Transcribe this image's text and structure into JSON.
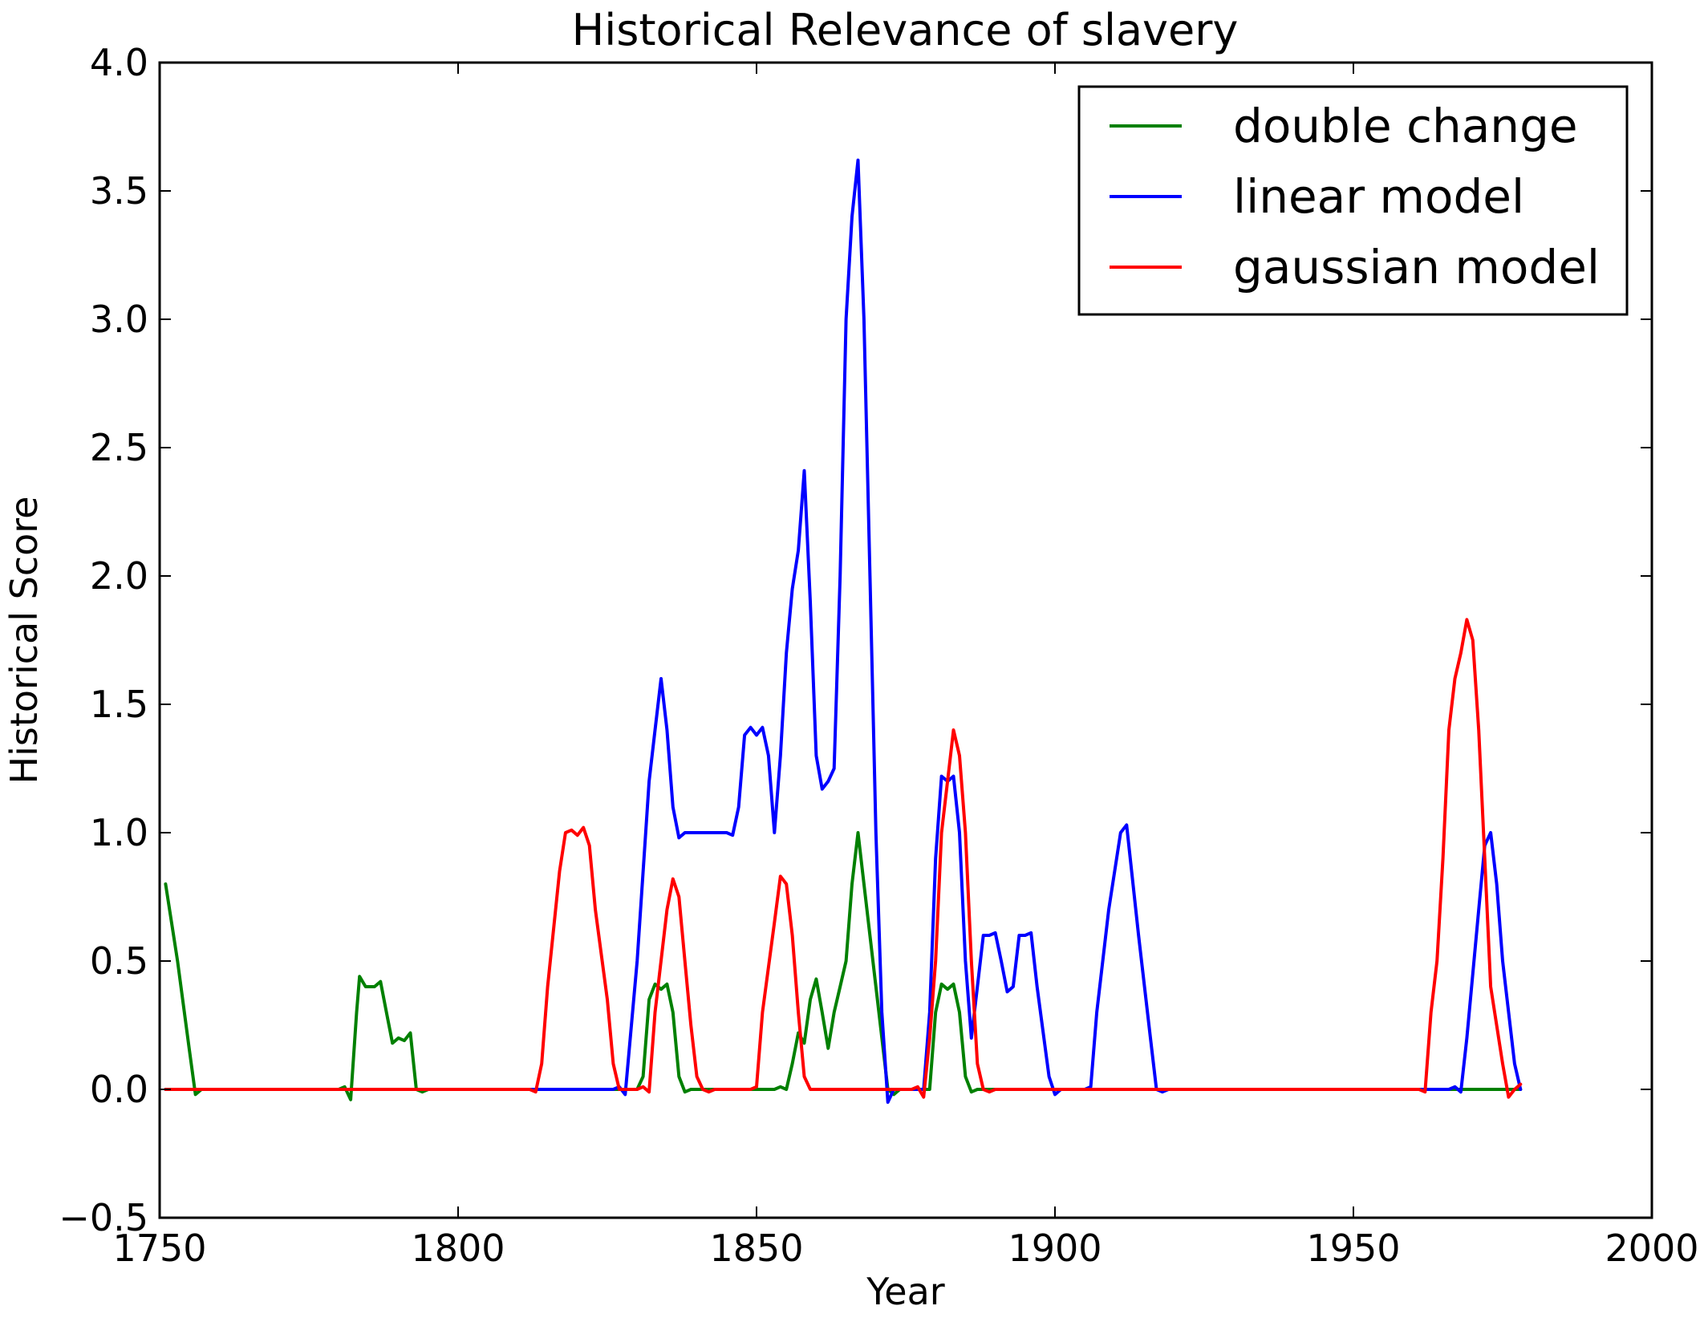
{
  "chart_data": {
    "type": "line",
    "title": "Historical Relevance of slavery",
    "xlabel": "Year",
    "ylabel": "Historical Score",
    "xlim": [
      1750,
      2000
    ],
    "ylim": [
      -0.5,
      4.0
    ],
    "x_ticks": [
      1750,
      1800,
      1850,
      1900,
      1950,
      2000
    ],
    "x_tick_labels": [
      "1750",
      "1800",
      "1850",
      "1900",
      "1950",
      "2000"
    ],
    "y_ticks": [
      -0.5,
      0.0,
      0.5,
      1.0,
      1.5,
      2.0,
      2.5,
      3.0,
      3.5,
      4.0
    ],
    "y_tick_labels": [
      "−0.5",
      "0.0",
      "0.5",
      "1.0",
      "1.5",
      "2.0",
      "2.5",
      "3.0",
      "3.5",
      "4.0"
    ],
    "grid": false,
    "legend_position": "top-right",
    "series": [
      {
        "name": "double change",
        "color": "#008000",
        "points": [
          [
            1751,
            0.8
          ],
          [
            1753,
            0.5
          ],
          [
            1755,
            0.15
          ],
          [
            1756,
            -0.02
          ],
          [
            1757,
            0.0
          ],
          [
            1780,
            0.0
          ],
          [
            1781,
            0.01
          ],
          [
            1782,
            -0.04
          ],
          [
            1783,
            0.3
          ],
          [
            1783.5,
            0.44
          ],
          [
            1784.5,
            0.4
          ],
          [
            1786,
            0.4
          ],
          [
            1787,
            0.42
          ],
          [
            1788,
            0.3
          ],
          [
            1789,
            0.18
          ],
          [
            1790,
            0.2
          ],
          [
            1791,
            0.19
          ],
          [
            1792,
            0.22
          ],
          [
            1793,
            0.0
          ],
          [
            1794,
            -0.01
          ],
          [
            1795,
            0.0
          ],
          [
            1830,
            0.0
          ],
          [
            1831,
            0.05
          ],
          [
            1832,
            0.35
          ],
          [
            1833,
            0.41
          ],
          [
            1834,
            0.39
          ],
          [
            1835,
            0.41
          ],
          [
            1836,
            0.3
          ],
          [
            1837,
            0.05
          ],
          [
            1838,
            -0.01
          ],
          [
            1839,
            0.0
          ],
          [
            1853,
            0.0
          ],
          [
            1854,
            0.01
          ],
          [
            1855,
            0.0
          ],
          [
            1856,
            0.1
          ],
          [
            1857,
            0.22
          ],
          [
            1858,
            0.18
          ],
          [
            1859,
            0.35
          ],
          [
            1860,
            0.43
          ],
          [
            1861,
            0.3
          ],
          [
            1862,
            0.16
          ],
          [
            1863,
            0.3
          ],
          [
            1864,
            0.4
          ],
          [
            1865,
            0.5
          ],
          [
            1866,
            0.8
          ],
          [
            1867,
            1.0
          ],
          [
            1868,
            0.8
          ],
          [
            1870,
            0.4
          ],
          [
            1872,
            0.0
          ],
          [
            1873,
            -0.02
          ],
          [
            1874,
            0.0
          ],
          [
            1879,
            0.0
          ],
          [
            1880,
            0.3
          ],
          [
            1881,
            0.41
          ],
          [
            1882,
            0.39
          ],
          [
            1883,
            0.41
          ],
          [
            1884,
            0.3
          ],
          [
            1885,
            0.05
          ],
          [
            1886,
            -0.01
          ],
          [
            1887,
            0.0
          ],
          [
            1978,
            0.0
          ]
        ]
      },
      {
        "name": "linear model",
        "color": "#0000ff",
        "points": [
          [
            1751,
            0.0
          ],
          [
            1826,
            0.0
          ],
          [
            1827,
            0.01
          ],
          [
            1828,
            -0.02
          ],
          [
            1830,
            0.5
          ],
          [
            1832,
            1.2
          ],
          [
            1833,
            1.4
          ],
          [
            1834,
            1.6
          ],
          [
            1835,
            1.4
          ],
          [
            1836,
            1.1
          ],
          [
            1837,
            0.98
          ],
          [
            1838,
            1.0
          ],
          [
            1845,
            1.0
          ],
          [
            1846,
            0.99
          ],
          [
            1847,
            1.1
          ],
          [
            1848,
            1.38
          ],
          [
            1849,
            1.41
          ],
          [
            1850,
            1.38
          ],
          [
            1851,
            1.41
          ],
          [
            1852,
            1.3
          ],
          [
            1853,
            1.0
          ],
          [
            1854,
            1.3
          ],
          [
            1855,
            1.7
          ],
          [
            1856,
            1.95
          ],
          [
            1857,
            2.1
          ],
          [
            1858,
            2.41
          ],
          [
            1859,
            1.9
          ],
          [
            1860,
            1.3
          ],
          [
            1861,
            1.17
          ],
          [
            1862,
            1.2
          ],
          [
            1863,
            1.25
          ],
          [
            1864,
            2.0
          ],
          [
            1865,
            3.0
          ],
          [
            1866,
            3.4
          ],
          [
            1867,
            3.62
          ],
          [
            1868,
            3.0
          ],
          [
            1869,
            2.0
          ],
          [
            1870,
            1.0
          ],
          [
            1871,
            0.3
          ],
          [
            1872,
            -0.05
          ],
          [
            1873,
            0.0
          ],
          [
            1878,
            0.0
          ],
          [
            1879,
            0.3
          ],
          [
            1880,
            0.9
          ],
          [
            1881,
            1.22
          ],
          [
            1882,
            1.2
          ],
          [
            1883,
            1.22
          ],
          [
            1884,
            1.0
          ],
          [
            1885,
            0.5
          ],
          [
            1886,
            0.2
          ],
          [
            1887,
            0.4
          ],
          [
            1888,
            0.6
          ],
          [
            1889,
            0.6
          ],
          [
            1890,
            0.61
          ],
          [
            1891,
            0.5
          ],
          [
            1892,
            0.38
          ],
          [
            1893,
            0.4
          ],
          [
            1894,
            0.6
          ],
          [
            1895,
            0.6
          ],
          [
            1896,
            0.61
          ],
          [
            1897,
            0.4
          ],
          [
            1899,
            0.05
          ],
          [
            1900,
            -0.02
          ],
          [
            1901,
            0.0
          ],
          [
            1905,
            0.0
          ],
          [
            1906,
            0.01
          ],
          [
            1907,
            0.3
          ],
          [
            1909,
            0.7
          ],
          [
            1911,
            1.0
          ],
          [
            1912,
            1.03
          ],
          [
            1914,
            0.6
          ],
          [
            1916,
            0.2
          ],
          [
            1917,
            0.0
          ],
          [
            1918,
            -0.01
          ],
          [
            1919,
            0.0
          ],
          [
            1966,
            0.0
          ],
          [
            1967,
            0.01
          ],
          [
            1968,
            -0.01
          ],
          [
            1969,
            0.2
          ],
          [
            1970,
            0.45
          ],
          [
            1971,
            0.7
          ],
          [
            1972,
            0.95
          ],
          [
            1973,
            1.0
          ],
          [
            1974,
            0.8
          ],
          [
            1975,
            0.5
          ],
          [
            1977,
            0.1
          ],
          [
            1978,
            0.0
          ]
        ]
      },
      {
        "name": "gaussian model",
        "color": "#ff0000",
        "points": [
          [
            1751,
            0.0
          ],
          [
            1812,
            0.0
          ],
          [
            1813,
            -0.01
          ],
          [
            1814,
            0.1
          ],
          [
            1815,
            0.4
          ],
          [
            1817,
            0.85
          ],
          [
            1818,
            1.0
          ],
          [
            1819,
            1.01
          ],
          [
            1820,
            0.99
          ],
          [
            1821,
            1.02
          ],
          [
            1822,
            0.95
          ],
          [
            1823,
            0.7
          ],
          [
            1825,
            0.35
          ],
          [
            1826,
            0.1
          ],
          [
            1827,
            0.0
          ],
          [
            1830,
            0.0
          ],
          [
            1831,
            0.01
          ],
          [
            1832,
            -0.01
          ],
          [
            1833,
            0.3
          ],
          [
            1835,
            0.7
          ],
          [
            1836,
            0.82
          ],
          [
            1837,
            0.75
          ],
          [
            1838,
            0.5
          ],
          [
            1839,
            0.25
          ],
          [
            1840,
            0.05
          ],
          [
            1841,
            0.0
          ],
          [
            1842,
            -0.01
          ],
          [
            1843,
            0.0
          ],
          [
            1849,
            0.0
          ],
          [
            1850,
            0.01
          ],
          [
            1851,
            0.3
          ],
          [
            1853,
            0.65
          ],
          [
            1854,
            0.83
          ],
          [
            1855,
            0.8
          ],
          [
            1856,
            0.6
          ],
          [
            1857,
            0.3
          ],
          [
            1858,
            0.05
          ],
          [
            1859,
            0.0
          ],
          [
            1876,
            0.0
          ],
          [
            1877,
            0.01
          ],
          [
            1878,
            -0.03
          ],
          [
            1879,
            0.2
          ],
          [
            1880,
            0.5
          ],
          [
            1881,
            1.0
          ],
          [
            1882,
            1.2
          ],
          [
            1883,
            1.4
          ],
          [
            1884,
            1.3
          ],
          [
            1885,
            1.0
          ],
          [
            1886,
            0.5
          ],
          [
            1887,
            0.1
          ],
          [
            1888,
            0.0
          ],
          [
            1889,
            -0.01
          ],
          [
            1890,
            0.0
          ],
          [
            1961,
            0.0
          ],
          [
            1962,
            -0.01
          ],
          [
            1963,
            0.3
          ],
          [
            1964,
            0.5
          ],
          [
            1965,
            0.9
          ],
          [
            1966,
            1.4
          ],
          [
            1967,
            1.6
          ],
          [
            1968,
            1.7
          ],
          [
            1969,
            1.83
          ],
          [
            1970,
            1.75
          ],
          [
            1971,
            1.4
          ],
          [
            1972,
            0.9
          ],
          [
            1973,
            0.4
          ],
          [
            1975,
            0.1
          ],
          [
            1976,
            -0.03
          ],
          [
            1977,
            0.0
          ],
          [
            1978,
            0.02
          ]
        ]
      }
    ]
  }
}
